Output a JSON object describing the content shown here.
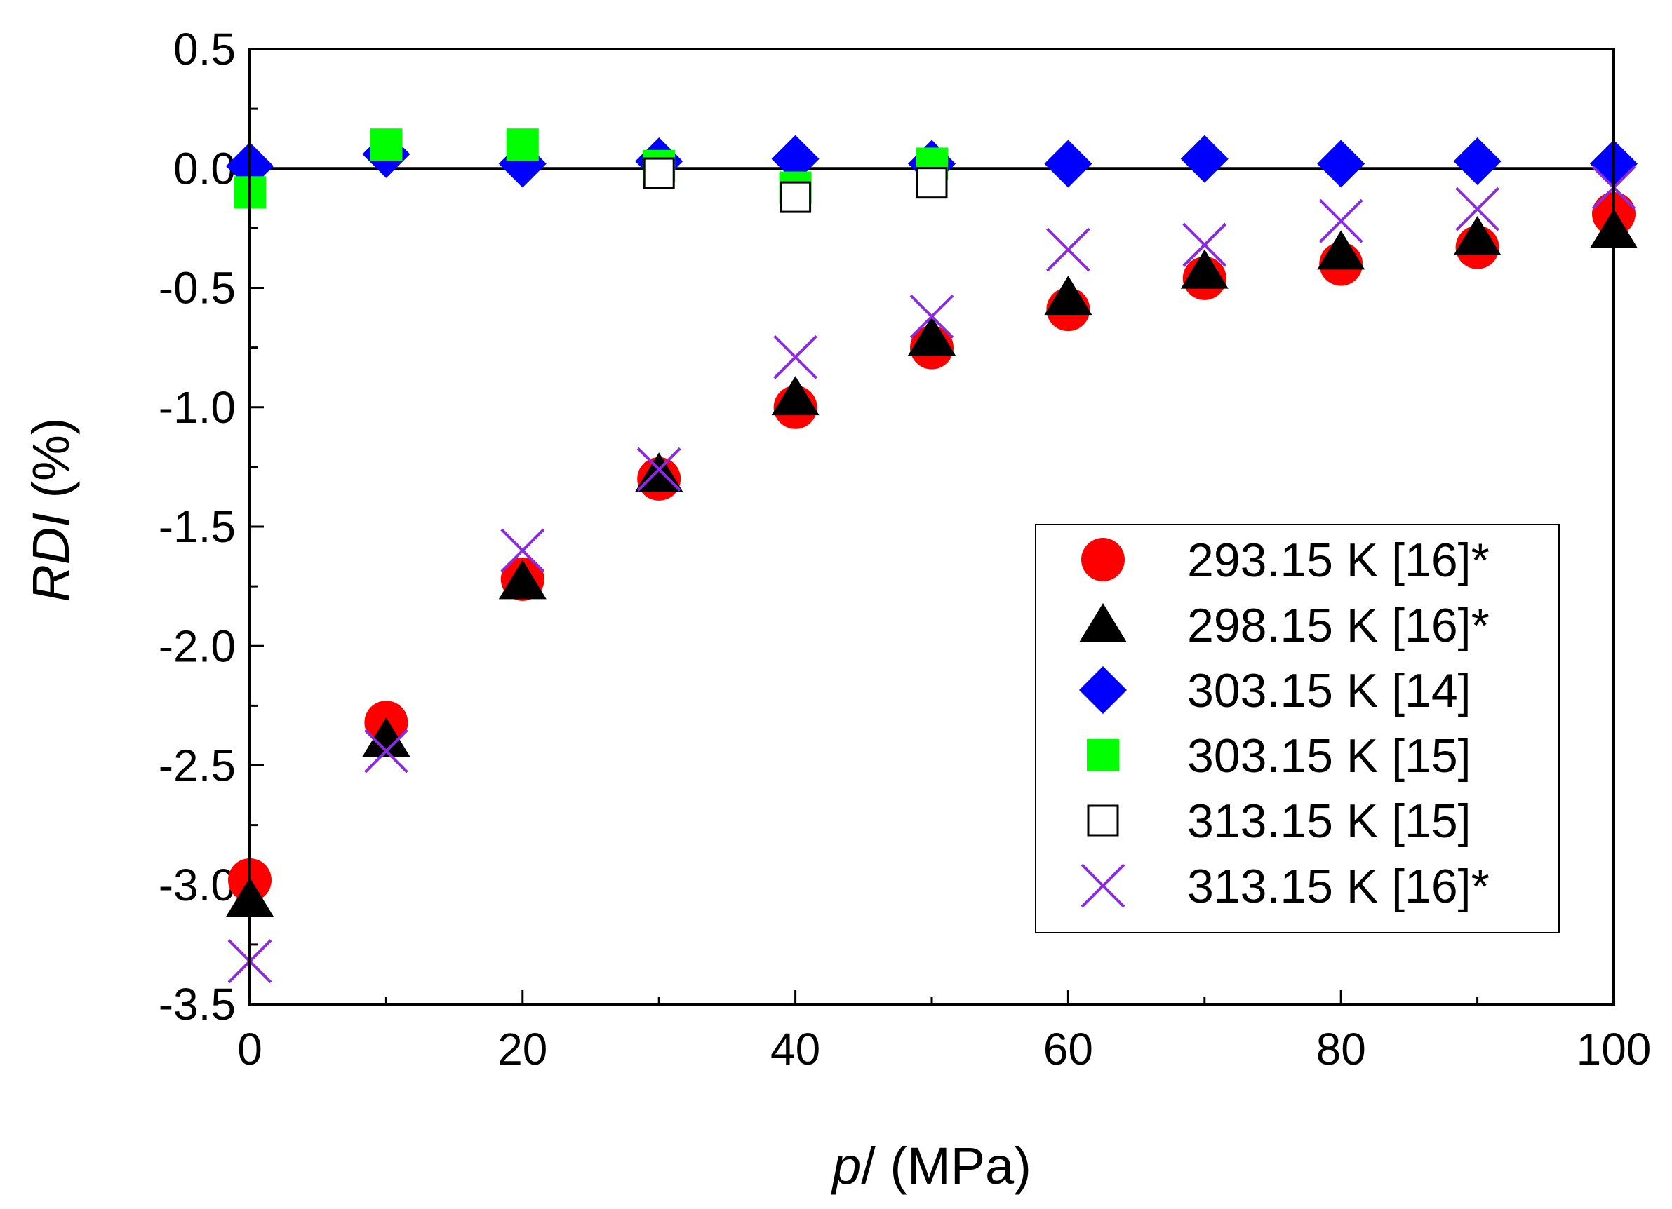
{
  "chart_data": {
    "type": "scatter",
    "title": "",
    "xlabel": {
      "italic": "p",
      "rest": "/ (MPa)"
    },
    "ylabel": {
      "italic": "RDI",
      "rest": " (%)"
    },
    "xlim": [
      0,
      100
    ],
    "ylim": [
      -3.5,
      0.5
    ],
    "x_ticks": [
      0,
      20,
      40,
      60,
      80,
      100
    ],
    "x_tick_labels": [
      "0",
      "20",
      "40",
      "60",
      "80",
      "100"
    ],
    "y_ticks": [
      0.5,
      0.0,
      -0.5,
      -1.0,
      -1.5,
      -2.0,
      -2.5,
      -3.0,
      -3.5
    ],
    "y_tick_labels": [
      "0.5",
      "0.0",
      "-0.5",
      "-1.0",
      "-1.5",
      "-2.0",
      "-2.5",
      "-3.0",
      "-3.5"
    ],
    "reference_line": 0,
    "legend_position": "lower-right",
    "series": [
      {
        "name": "293.15 K [16]*",
        "marker": "circle",
        "color": "#ff0000",
        "x": [
          0,
          10,
          20,
          30,
          40,
          50,
          60,
          70,
          80,
          90,
          100
        ],
        "y": [
          -2.98,
          -2.32,
          -1.72,
          -1.3,
          -1.0,
          -0.75,
          -0.59,
          -0.46,
          -0.4,
          -0.33,
          -0.19
        ]
      },
      {
        "name": "298.15 K [16]*",
        "marker": "triangle",
        "color": "#000000",
        "x": [
          0,
          10,
          20,
          30,
          40,
          50,
          60,
          70,
          80,
          90,
          100
        ],
        "y": [
          -3.06,
          -2.39,
          -1.73,
          -1.28,
          -0.96,
          -0.71,
          -0.54,
          -0.43,
          -0.35,
          -0.29,
          -0.26
        ]
      },
      {
        "name": "303.15 K [14]",
        "marker": "diamond",
        "color": "#0000ff",
        "x": [
          0,
          10,
          20,
          30,
          40,
          50,
          60,
          70,
          80,
          90,
          100
        ],
        "y": [
          0.01,
          0.06,
          0.02,
          0.03,
          0.04,
          0.02,
          0.02,
          0.04,
          0.02,
          0.03,
          0.02
        ]
      },
      {
        "name": "303.15 K [15]",
        "marker": "square-filled",
        "color": "#00ff00",
        "x": [
          0,
          10,
          20,
          30,
          40,
          50
        ],
        "y": [
          -0.1,
          0.1,
          0.1,
          0.01,
          -0.08,
          0.02
        ]
      },
      {
        "name": "313.15 K [15]",
        "marker": "square-open",
        "color": "#000000",
        "x": [
          30,
          40,
          50
        ],
        "y": [
          -0.02,
          -0.12,
          -0.06
        ]
      },
      {
        "name": "313.15 K [16]*",
        "marker": "cross",
        "color": "#8a2be2",
        "x": [
          0,
          10,
          20,
          30,
          40,
          50,
          60,
          70,
          80,
          90,
          100
        ],
        "y": [
          -3.32,
          -2.44,
          -1.6,
          -1.26,
          -0.79,
          -0.62,
          -0.34,
          -0.32,
          -0.22,
          -0.17,
          -0.08
        ]
      }
    ]
  }
}
